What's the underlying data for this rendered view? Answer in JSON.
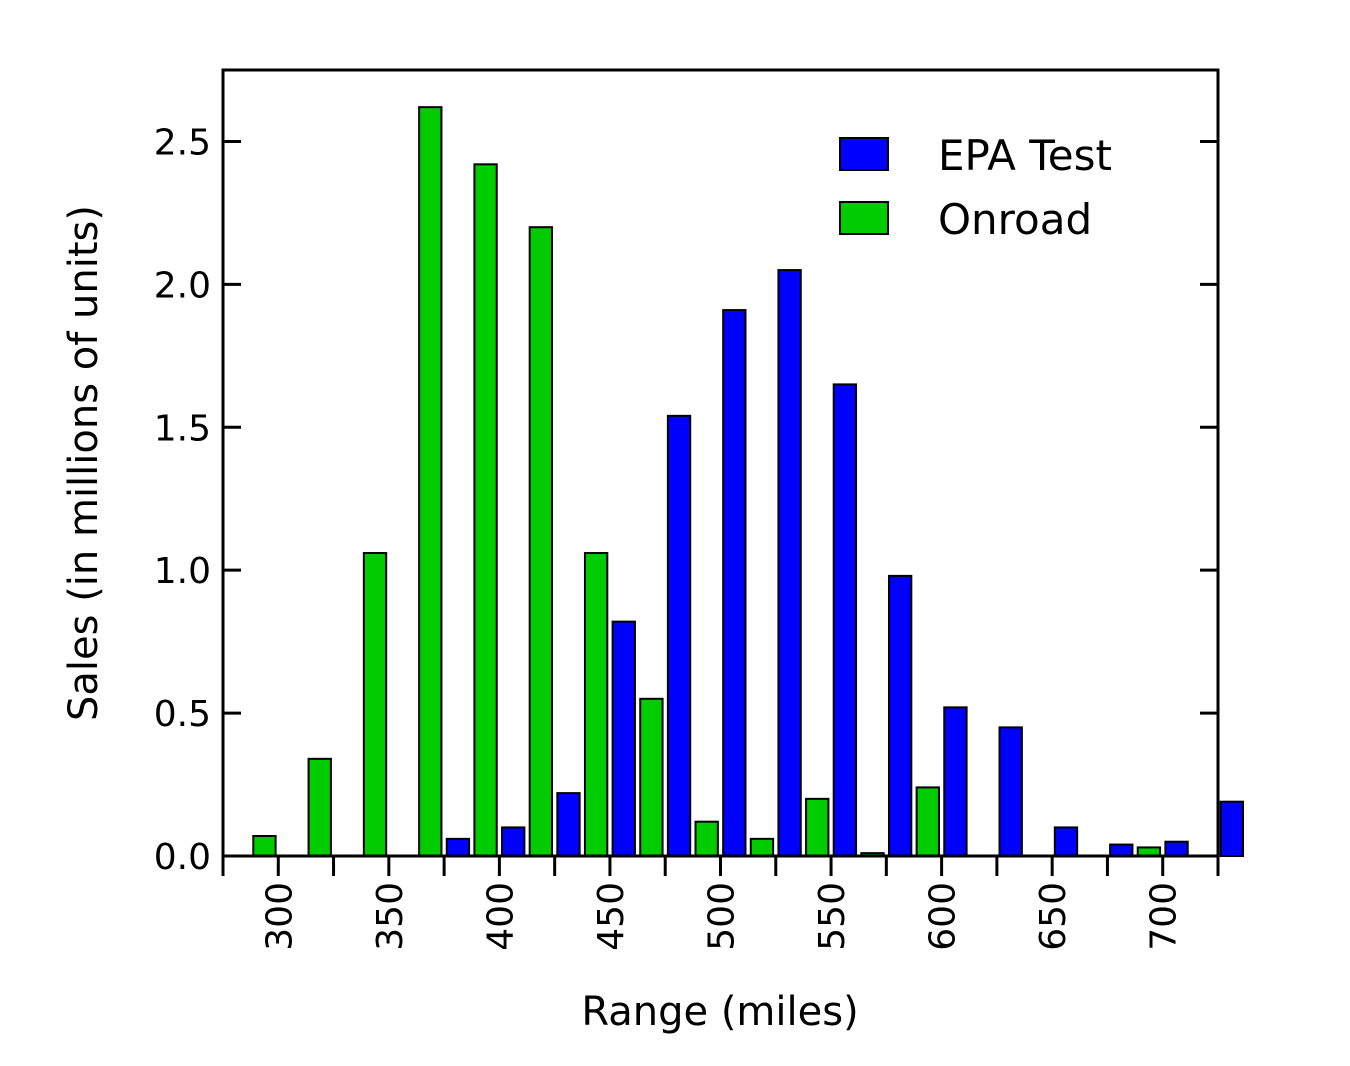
{
  "chart_data": {
    "type": "bar",
    "title": "",
    "xlabel": "Range (miles)",
    "ylabel": "Sales (in millions of units)",
    "ylim": [
      0,
      2.75
    ],
    "xlim": [
      275,
      725
    ],
    "bin_width": 25,
    "x_ticks": [
      300,
      350,
      400,
      450,
      500,
      550,
      600,
      650,
      700
    ],
    "y_ticks": [
      0.0,
      0.5,
      1.0,
      1.5,
      2.0,
      2.5
    ],
    "y_tick_labels": [
      "0.0",
      "0.5",
      "1.0",
      "1.5",
      "2.0",
      "2.5"
    ],
    "grid": false,
    "legend_position": "top-right",
    "bin_centers": [
      300,
      325,
      350,
      375,
      400,
      425,
      450,
      475,
      500,
      525,
      550,
      575,
      600,
      625,
      650,
      675,
      700,
      725
    ],
    "series": [
      {
        "name": "EPA Test",
        "color": "#0000ff",
        "values": [
          0,
          0,
          0,
          0.06,
          0.1,
          0.22,
          0.82,
          1.54,
          1.91,
          2.05,
          1.65,
          0.98,
          0.52,
          0.45,
          0.1,
          0.04,
          0.05,
          0.19
        ]
      },
      {
        "name": "Onroad",
        "color": "#00cc00",
        "values": [
          0.07,
          0.34,
          1.06,
          2.62,
          2.42,
          2.2,
          1.06,
          0.55,
          0.12,
          0.06,
          0.2,
          0.01,
          0.24,
          0,
          0,
          0,
          0.03,
          0
        ]
      }
    ]
  }
}
